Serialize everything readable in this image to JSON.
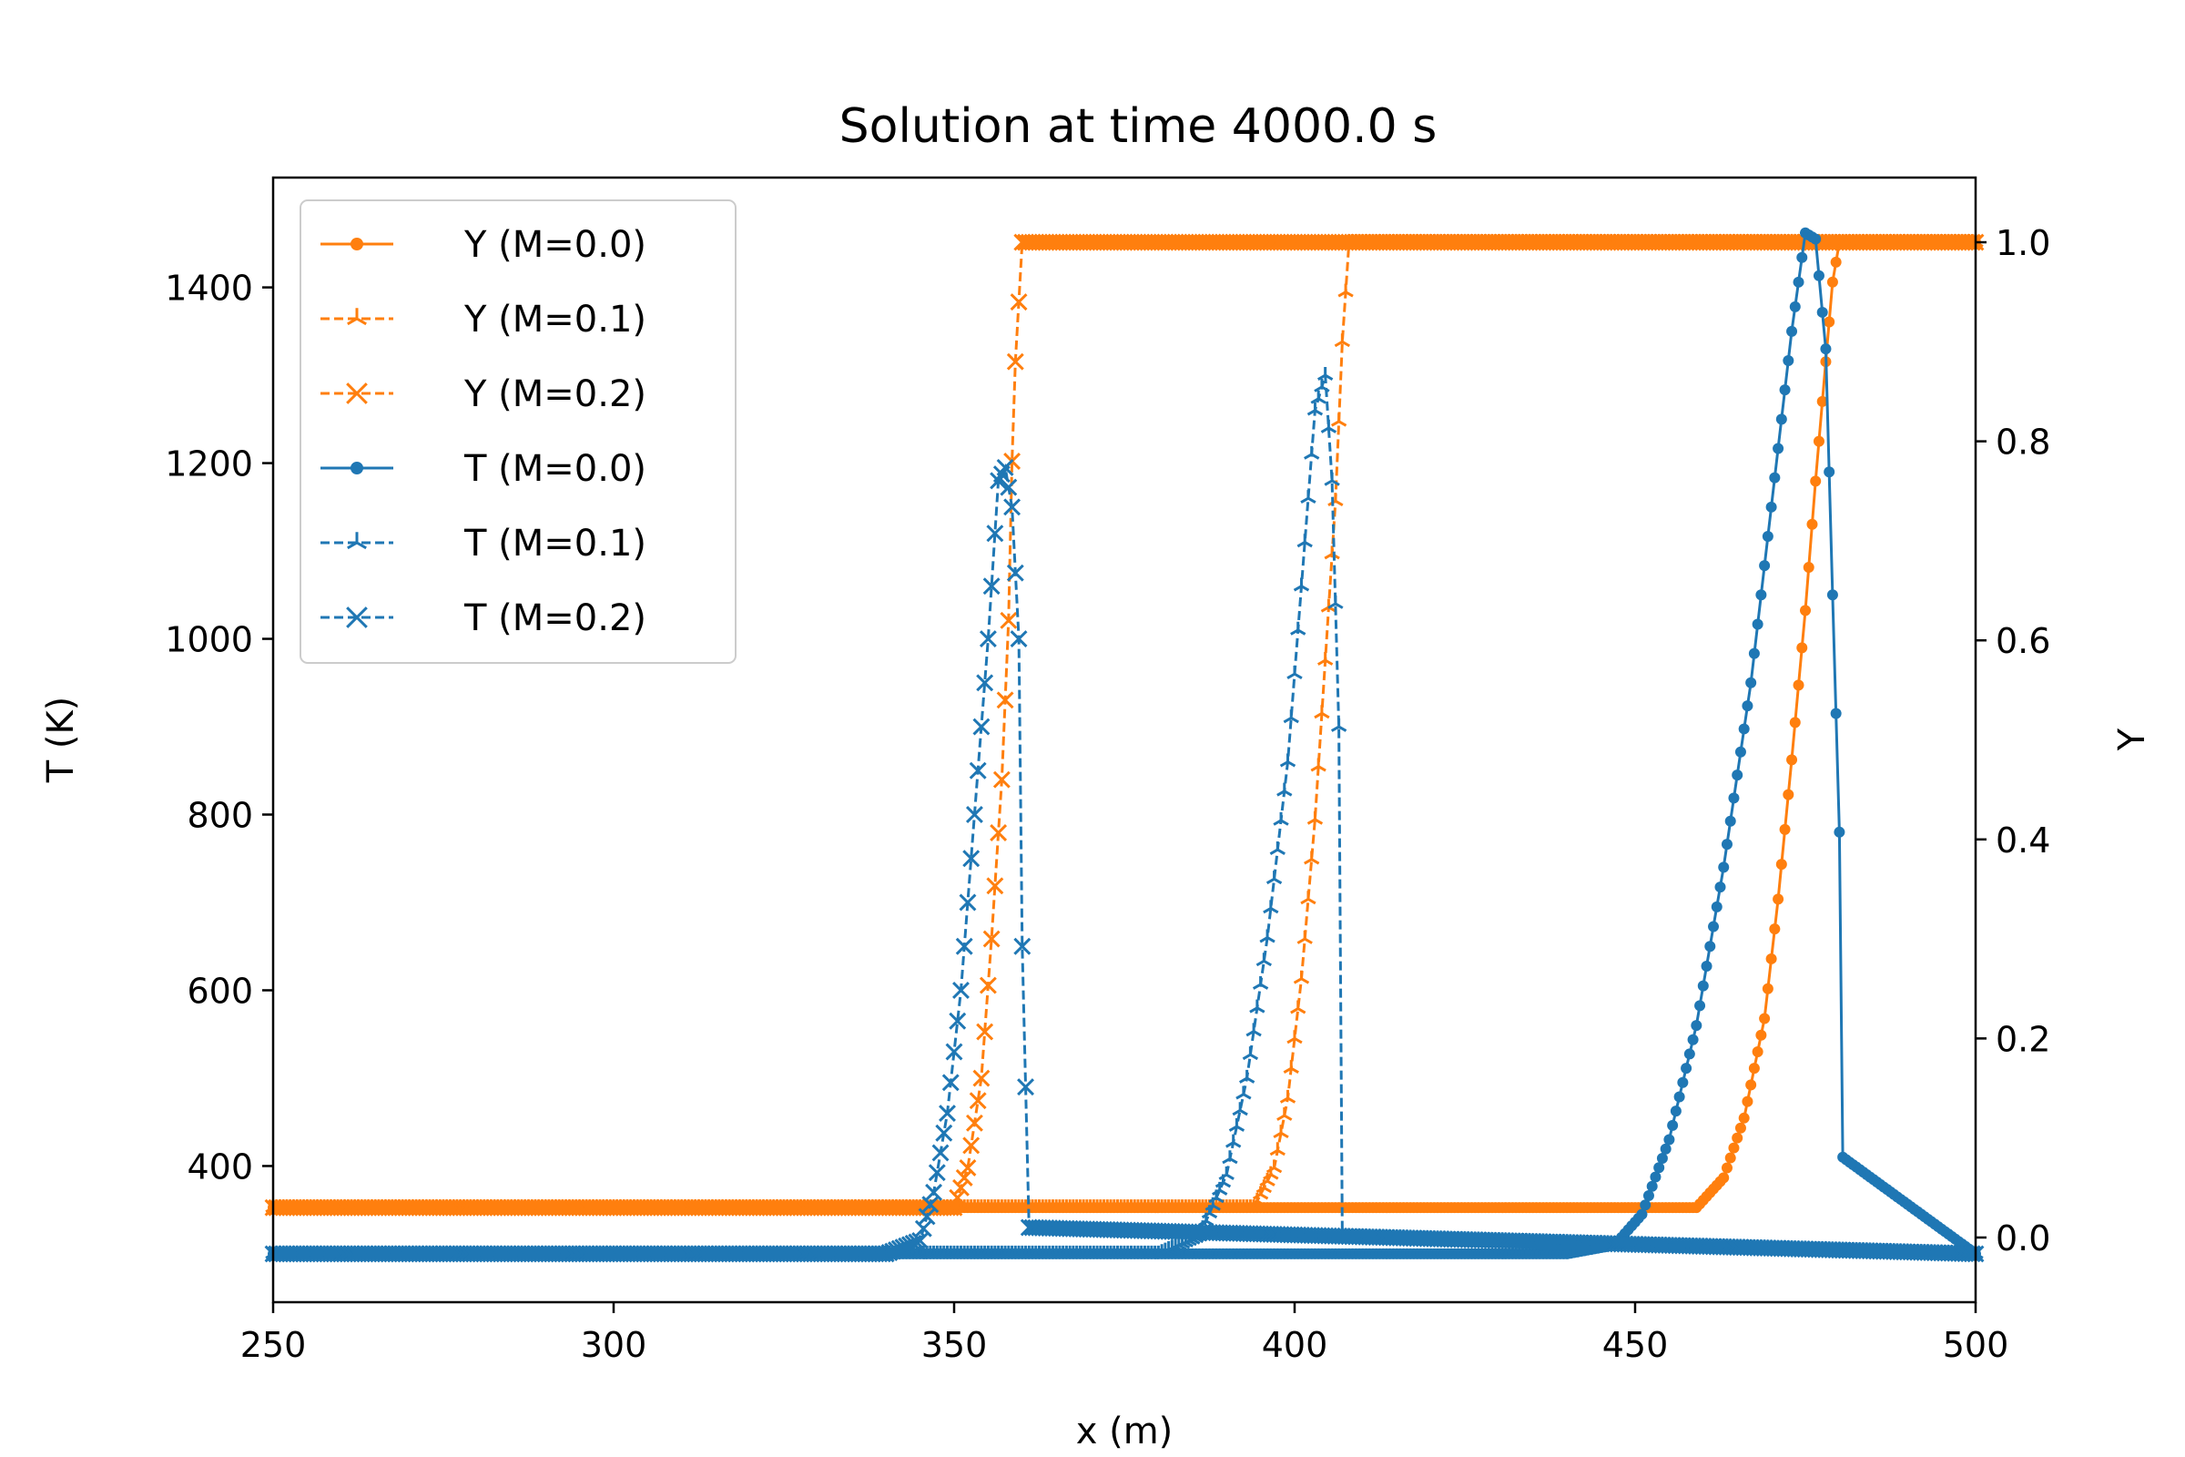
{
  "chart_data": {
    "type": "line",
    "title": "Solution at time 4000.0 s",
    "xlabel": "x (m)",
    "ylabel_left": "T (K)",
    "ylabel_right": "Y",
    "xlim": [
      250,
      500
    ],
    "ylim_left": [
      245,
      1525
    ],
    "ylim_right": [
      -0.065,
      1.065
    ],
    "xticks": [
      250,
      300,
      350,
      400,
      450,
      500
    ],
    "yticks_left": [
      400,
      600,
      800,
      1000,
      1200,
      1400
    ],
    "yticks_right": [
      0.0,
      0.2,
      0.4,
      0.6,
      0.8,
      1.0
    ],
    "legend_position": "upper-left",
    "colors": {
      "Y": "#ff7f0e",
      "T": "#1f77b4"
    },
    "series": [
      {
        "name": "Y (M=0.0)",
        "axis": "right",
        "line": "solid",
        "marker": "dot",
        "x": [
          250,
          440,
          459,
          463,
          466,
          469,
          471,
          473,
          475,
          476.5,
          478,
          479,
          480,
          500
        ],
        "y": [
          0.03,
          0.03,
          0.03,
          0.06,
          0.12,
          0.22,
          0.34,
          0.48,
          0.63,
          0.76,
          0.88,
          0.96,
          1.0,
          1.0
        ]
      },
      {
        "name": "Y (M=0.1)",
        "axis": "right",
        "line": "dashed",
        "marker": "tri",
        "x": [
          250,
          380,
          394,
          397,
          399,
          401,
          403,
          404.5,
          406,
          407,
          408,
          500
        ],
        "y": [
          0.03,
          0.03,
          0.03,
          0.07,
          0.14,
          0.26,
          0.42,
          0.58,
          0.74,
          0.9,
          1.0,
          1.0
        ]
      },
      {
        "name": "Y (M=0.2)",
        "axis": "right",
        "line": "dashed",
        "marker": "x",
        "x": [
          250,
          340,
          350,
          352,
          354,
          355.5,
          357,
          358,
          358.5,
          359,
          360,
          500
        ],
        "y": [
          0.03,
          0.03,
          0.03,
          0.07,
          0.16,
          0.3,
          0.46,
          0.62,
          0.78,
          0.88,
          1.0,
          1.0
        ]
      },
      {
        "name": "T (M=0.0)",
        "axis": "left",
        "line": "solid",
        "marker": "dot",
        "x": [
          250,
          440,
          447,
          451,
          455,
          459,
          463,
          467,
          470,
          473,
          475,
          476.5,
          478,
          479,
          480,
          480.5,
          500
        ],
        "y": [
          300,
          300,
          310,
          345,
          430,
          560,
          740,
          950,
          1150,
          1350,
          1462,
          1455,
          1330,
          1050,
          780,
          410,
          300
        ]
      },
      {
        "name": "T (M=0.1)",
        "axis": "left",
        "line": "dashed",
        "marker": "tri",
        "x": [
          250,
          380,
          386,
          390,
          393,
          396,
          399,
          401,
          403,
          404.5,
          405.5,
          406.5,
          407,
          500
        ],
        "y": [
          300,
          300,
          320,
          390,
          500,
          660,
          860,
          1060,
          1260,
          1300,
          1180,
          900,
          320,
          300
        ]
      },
      {
        "name": "T (M=0.2)",
        "axis": "left",
        "line": "dashed",
        "marker": "x",
        "x": [
          250,
          340,
          345,
          347,
          349,
          351,
          353,
          355,
          356.5,
          357.5,
          358.5,
          359.5,
          360,
          361,
          500
        ],
        "y": [
          300,
          300,
          315,
          370,
          460,
          600,
          800,
          1000,
          1180,
          1195,
          1150,
          1000,
          650,
          330,
          300
        ]
      }
    ]
  }
}
